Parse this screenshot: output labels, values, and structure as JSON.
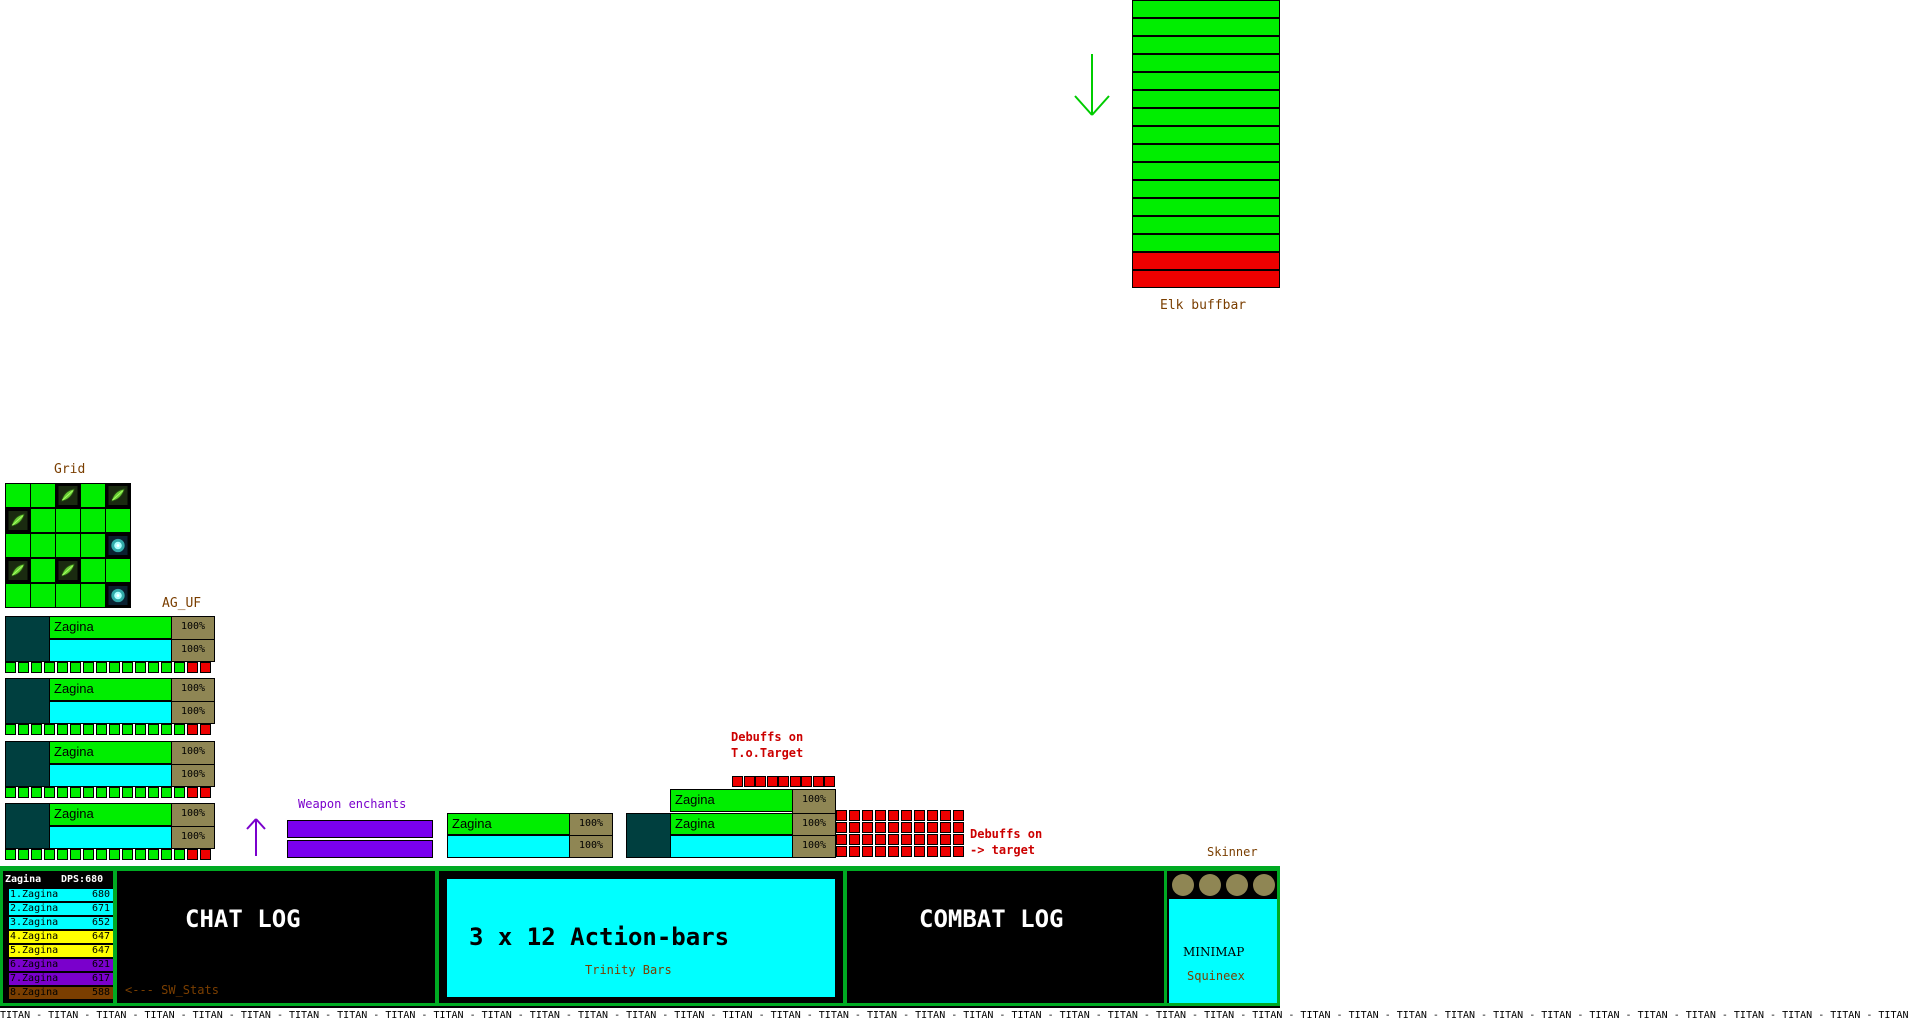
{
  "elk": {
    "label": "Elk buffbar",
    "cells": [
      "green",
      "green",
      "green",
      "green",
      "green",
      "green",
      "green",
      "green",
      "green",
      "green",
      "green",
      "green",
      "green",
      "green",
      "red",
      "red"
    ]
  },
  "arrows": {
    "down_color": "#00cc00",
    "up_color": "#7a00cc"
  },
  "grid": {
    "label": "Grid",
    "cells": [
      [
        "empty",
        "empty",
        "leaf",
        "empty",
        "leaf"
      ],
      [
        "leaf",
        "empty",
        "empty",
        "empty",
        "empty"
      ],
      [
        "empty",
        "empty",
        "empty",
        "empty",
        "swirl"
      ],
      [
        "leaf",
        "empty",
        "leaf",
        "empty",
        "empty"
      ],
      [
        "empty",
        "empty",
        "empty",
        "empty",
        "swirl"
      ]
    ]
  },
  "ag_uf": {
    "label": "AG_UF",
    "frames": [
      {
        "name": "Zagina",
        "hp": "100%",
        "mp": "100%"
      },
      {
        "name": "Zagina",
        "hp": "100%",
        "mp": "100%"
      },
      {
        "name": "Zagina",
        "hp": "100%",
        "mp": "100%"
      },
      {
        "name": "Zagina",
        "hp": "100%",
        "mp": "100%"
      }
    ]
  },
  "weapon_enchants": {
    "label": "Weapon enchants"
  },
  "player_frame": {
    "name": "Zagina",
    "hp": "100%",
    "mp": "100%"
  },
  "target_frame": {
    "tot_name": "Zagina",
    "tot_hp": "100%",
    "name": "Zagina",
    "hp": "100%",
    "mp": "100%"
  },
  "debuffs_tot": {
    "line1": "Debuffs on",
    "line2": "T.o.Target"
  },
  "debuffs_target": {
    "line1": "Debuffs on",
    "line2": "-> target"
  },
  "skinner": {
    "label": "Skinner"
  },
  "sw_stats": {
    "header_name": "Zagina",
    "header_dps": "DPS:680",
    "rows": [
      {
        "name": "1.Zagina",
        "value": "680",
        "color": "#00ffff"
      },
      {
        "name": "2.Zagina",
        "value": "671",
        "color": "#00ffff"
      },
      {
        "name": "3.Zagina",
        "value": "652",
        "color": "#00ffff"
      },
      {
        "name": "4.Zagina",
        "value": "647",
        "color": "#ffff00"
      },
      {
        "name": "5.Zagina",
        "value": "647",
        "color": "#ffff00"
      },
      {
        "name": "6.Zagina",
        "value": "621",
        "color": "#7a00cc"
      },
      {
        "name": "7.Zagina",
        "value": "617",
        "color": "#7a00cc"
      },
      {
        "name": "8.Zagina",
        "value": "588",
        "color": "#7a3e00"
      }
    ],
    "label": "<--- SW_Stats"
  },
  "chat_log": {
    "label": "CHAT LOG"
  },
  "action_bars": {
    "title": "3 x 12 Action-bars",
    "subtitle": "Trinity Bars"
  },
  "combat_log": {
    "label": "COMBAT LOG"
  },
  "minimap": {
    "label": "MINIMAP",
    "sub": "Squineex"
  },
  "titan": {
    "text": "TITAN - TITAN - TITAN - TITAN - TITAN - TITAN - TITAN - TITAN - TITAN - TITAN - TITAN - TITAN - TITAN - TITAN - TITAN - TITAN - TITAN - TITAN - TITAN - TITAN - TITAN - TITAN - TITAN - TITAN - TITAN - TITAN - TITAN - TITAN - TITAN - TITAN - TITAN - TITAN - TITAN - TITAN - TITAN - TITAN - TITAN - TITAN - TITAN - TITAN"
  }
}
